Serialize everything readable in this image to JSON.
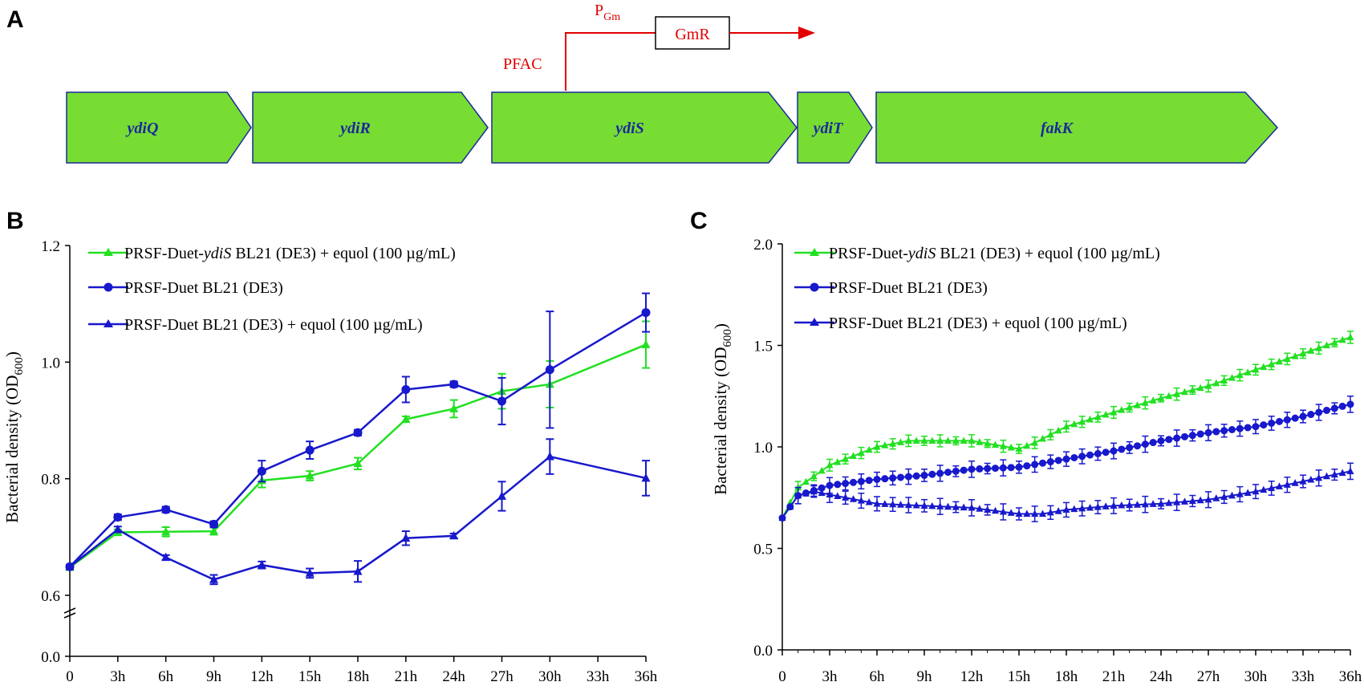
{
  "panels": {
    "a": "A",
    "b": "B",
    "c": "C"
  },
  "panel_a": {
    "genes": [
      "ydiQ",
      "ydiR",
      "ydiS",
      "ydiT",
      "fakK"
    ],
    "promoter_label": "PFAC",
    "pgm_label": "P",
    "pgm_sub": "Gm",
    "gmr_label": "GmR"
  },
  "colors": {
    "green": "#22e022",
    "blue": "#1818cc",
    "gene_fill": "#77dd33",
    "gene_stroke": "#1a2a9a",
    "red": "#e00000"
  },
  "legend": [
    {
      "pre": "PRSF-Duet-",
      "ital": "ydiS",
      "post": " BL21 (DE3) + equol (100 µg/mL)"
    },
    {
      "pre": "PRSF-Duet BL21 (DE3)",
      "ital": "",
      "post": ""
    },
    {
      "pre": "PRSF-Duet BL21 (DE3) + equol (100 µg/mL)",
      "ital": "",
      "post": ""
    }
  ],
  "chart_data": [
    {
      "type": "line",
      "panel": "B",
      "ylabel": "Bacterial density (OD",
      "ylabel_sub": "600",
      "ylabel_end": ")",
      "x_ticks": [
        "0",
        "3h",
        "6h",
        "9h",
        "12h",
        "15h",
        "18h",
        "21h",
        "24h",
        "27h",
        "30h",
        "33h",
        "36h"
      ],
      "y_ticks": [
        "0.0",
        "0.6",
        "0.8",
        "1.0",
        "1.2"
      ],
      "ylim": [
        0.0,
        1.2
      ],
      "axis_break": true,
      "x": [
        0,
        3,
        6,
        9,
        12,
        15,
        18,
        21,
        24,
        27,
        30,
        36
      ],
      "series": [
        {
          "name": "PRSF-Duet-ydiS BL21 (DE3) + equol (100 µg/mL)",
          "color": "green",
          "marker": "triangle",
          "values": [
            0.648,
            0.708,
            0.709,
            0.71,
            0.797,
            0.805,
            0.826,
            0.902,
            0.92,
            0.95,
            0.962,
            1.03
          ],
          "errors": [
            0.004,
            0.005,
            0.008,
            0.006,
            0.012,
            0.008,
            0.01,
            0.005,
            0.015,
            0.03,
            0.04,
            0.04
          ]
        },
        {
          "name": "PRSF-Duet BL21 (DE3)",
          "color": "blue",
          "marker": "circle",
          "values": [
            0.649,
            0.734,
            0.747,
            0.722,
            0.813,
            0.849,
            0.879,
            0.953,
            0.962,
            0.933,
            0.987,
            1.085
          ],
          "errors": [
            0.004,
            0.005,
            0.005,
            0.005,
            0.018,
            0.015,
            0.005,
            0.022,
            0.005,
            0.04,
            0.1,
            0.033
          ]
        },
        {
          "name": "PRSF-Duet BL21 (DE3) + equol (100 µg/mL)",
          "color": "blue",
          "marker": "triangle",
          "values": [
            0.649,
            0.713,
            0.665,
            0.627,
            0.652,
            0.638,
            0.641,
            0.698,
            0.702,
            0.77,
            0.838,
            0.801
          ],
          "errors": [
            0.003,
            0.005,
            0.004,
            0.008,
            0.006,
            0.008,
            0.018,
            0.012,
            0.004,
            0.025,
            0.03,
            0.03
          ]
        }
      ]
    },
    {
      "type": "line",
      "panel": "C",
      "ylabel": "Bacterial density (OD",
      "ylabel_sub": "600",
      "ylabel_end": ")",
      "x_ticks": [
        "0",
        "3h",
        "6h",
        "9h",
        "12h",
        "15h",
        "18h",
        "21h",
        "24h",
        "27h",
        "30h",
        "33h",
        "36h"
      ],
      "y_ticks": [
        "0.0",
        "0.5",
        "1.0",
        "1.5",
        "2.0"
      ],
      "ylim": [
        0.0,
        2.0
      ],
      "x_step_hours": 0.5,
      "series": [
        {
          "name": "PRSF-Duet-ydiS BL21 (DE3) + equol (100 µg/mL)",
          "color": "green",
          "marker": "triangle",
          "knots": [
            [
              0,
              0.65
            ],
            [
              1,
              0.8
            ],
            [
              3,
              0.91
            ],
            [
              6,
              1.0
            ],
            [
              8,
              1.03
            ],
            [
              10,
              1.03
            ],
            [
              12,
              1.03
            ],
            [
              15,
              0.99
            ],
            [
              16,
              1.02
            ],
            [
              18,
              1.1
            ],
            [
              21,
              1.17
            ],
            [
              24,
              1.24
            ],
            [
              27,
              1.3
            ],
            [
              30,
              1.38
            ],
            [
              33,
              1.46
            ],
            [
              36,
              1.54
            ]
          ],
          "error": 0.03
        },
        {
          "name": "PRSF-Duet BL21 (DE3)",
          "color": "blue",
          "marker": "circle",
          "knots": [
            [
              0,
              0.65
            ],
            [
              1,
              0.76
            ],
            [
              3,
              0.81
            ],
            [
              6,
              0.84
            ],
            [
              9,
              0.86
            ],
            [
              12,
              0.89
            ],
            [
              15,
              0.9
            ],
            [
              18,
              0.94
            ],
            [
              21,
              0.98
            ],
            [
              24,
              1.03
            ],
            [
              27,
              1.07
            ],
            [
              30,
              1.1
            ],
            [
              33,
              1.15
            ],
            [
              36,
              1.21
            ]
          ],
          "error": 0.04
        },
        {
          "name": "PRSF-Duet BL21 (DE3) + equol (100 µg/mL)",
          "color": "blue",
          "marker": "triangle",
          "knots": [
            [
              0,
              0.65
            ],
            [
              1,
              0.76
            ],
            [
              2,
              0.78
            ],
            [
              4,
              0.75
            ],
            [
              6,
              0.72
            ],
            [
              9,
              0.71
            ],
            [
              12,
              0.7
            ],
            [
              15,
              0.67
            ],
            [
              16.5,
              0.67
            ],
            [
              18,
              0.69
            ],
            [
              21,
              0.71
            ],
            [
              24,
              0.72
            ],
            [
              27,
              0.74
            ],
            [
              30,
              0.78
            ],
            [
              33,
              0.83
            ],
            [
              36,
              0.88
            ]
          ],
          "error": 0.04
        }
      ]
    }
  ]
}
